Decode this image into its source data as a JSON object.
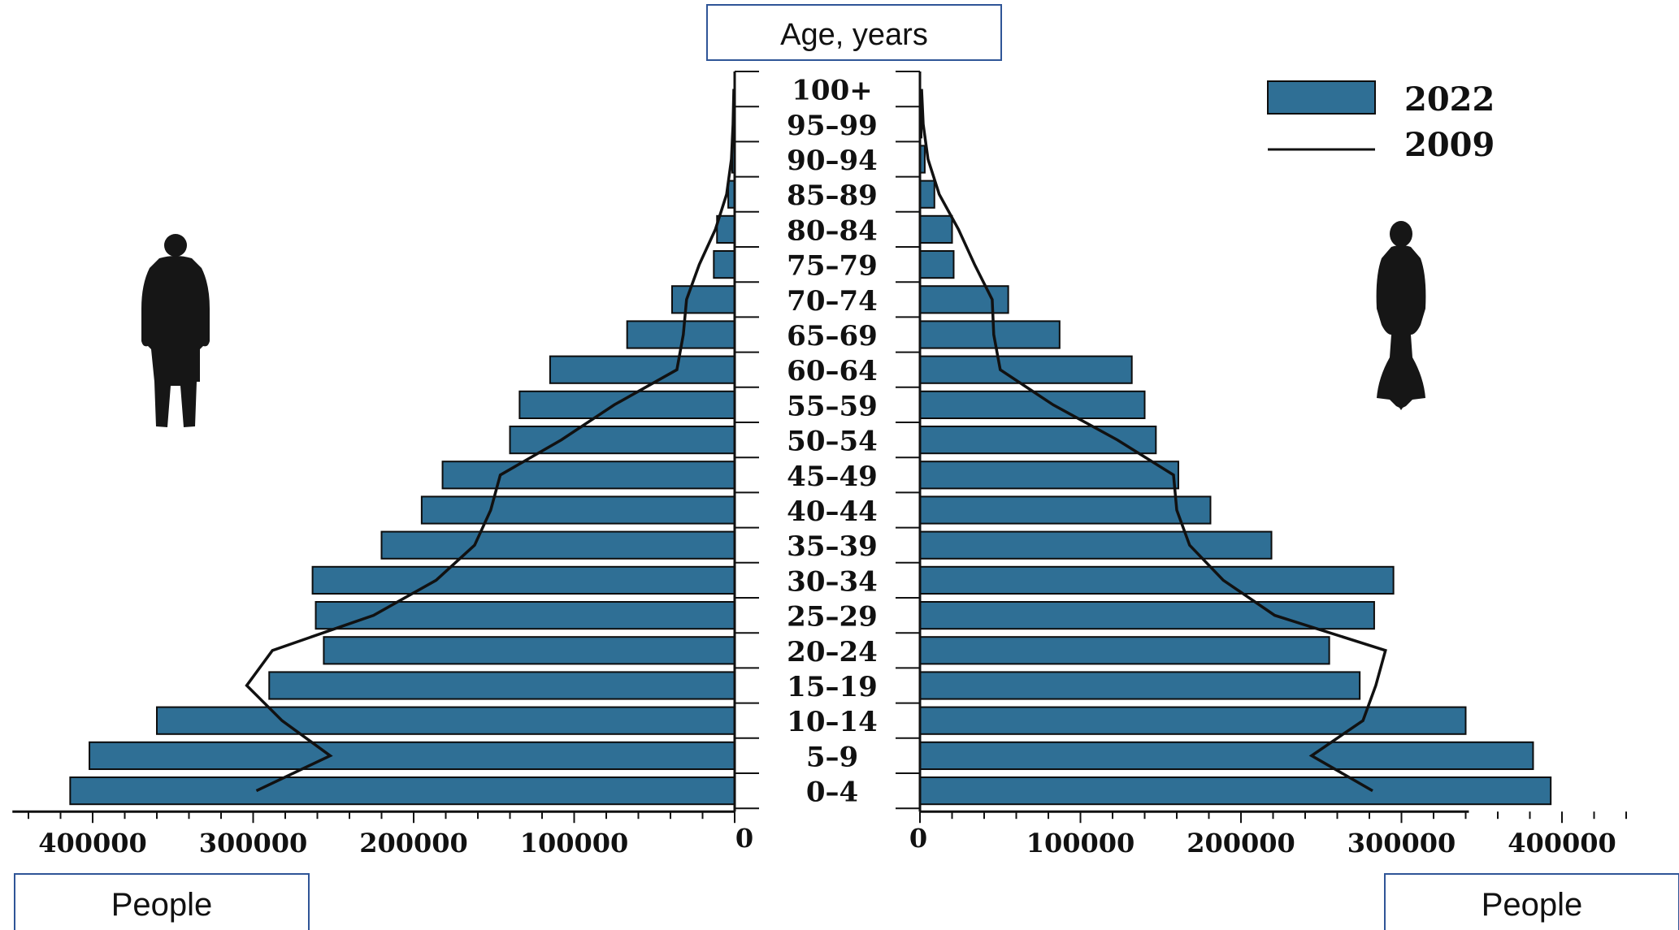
{
  "chart_data": {
    "type": "bar",
    "title": "",
    "center_axis_label": "Age, years",
    "left_axis_label": "People",
    "right_axis_label": "People",
    "categories": [
      "0-4",
      "5-9",
      "10-14",
      "15-19",
      "20-24",
      "25-29",
      "30-34",
      "35-39",
      "40-44",
      "45-49",
      "50-54",
      "55-59",
      "60-64",
      "65-69",
      "70-74",
      "75-79",
      "80-84",
      "85-89",
      "90-94",
      "95-99",
      "100+"
    ],
    "series": [
      {
        "name": "2022",
        "kind": "bar",
        "male": [
          414000,
          402000,
          360000,
          290000,
          256000,
          261000,
          263000,
          220000,
          195000,
          182000,
          140000,
          134000,
          115000,
          67000,
          39000,
          13000,
          11000,
          4000,
          1500,
          500,
          100
        ],
        "female": [
          393000,
          382000,
          340000,
          274000,
          255000,
          283000,
          295000,
          219000,
          181000,
          161000,
          147000,
          140000,
          132000,
          87000,
          55000,
          21000,
          20000,
          9000,
          3000,
          1000,
          200
        ]
      },
      {
        "name": "2009",
        "kind": "line",
        "male": [
          298000,
          252000,
          282000,
          304000,
          288000,
          225000,
          186000,
          162000,
          152000,
          146000,
          108000,
          75000,
          36000,
          32000,
          30000,
          22000,
          12000,
          5000,
          2000,
          1000,
          500
        ],
        "female": [
          282000,
          244000,
          276000,
          284000,
          290000,
          221000,
          189000,
          168000,
          160000,
          158000,
          123000,
          83000,
          50000,
          46000,
          45000,
          34000,
          24000,
          12000,
          5000,
          2000,
          1000
        ]
      }
    ],
    "xlim": [
      0,
      450000
    ],
    "xticks_left": [
      "400000",
      "300000",
      "200000",
      "100000",
      "0"
    ],
    "xticks_left_values": [
      400000,
      300000,
      200000,
      100000,
      0
    ],
    "xticks_right": [
      "0",
      "100000",
      "200000",
      "300000",
      "400000"
    ],
    "xticks_right_values": [
      0,
      100000,
      200000,
      300000,
      400000
    ],
    "legend_position": "top-right",
    "colors": {
      "bar_fill": "#2f6f95",
      "bar_stroke": "#0d0d0d",
      "line": "#111111",
      "label_box": "#2f5597"
    }
  },
  "figures": {
    "left": "male-figure-icon",
    "right": "female-figure-icon"
  }
}
